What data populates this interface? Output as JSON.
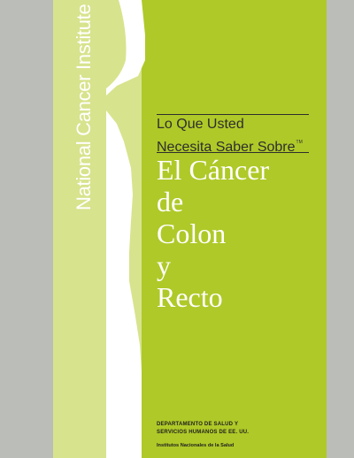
{
  "organization": "National Cancer Institute",
  "subtitle": {
    "line1": "Lo Que Usted",
    "line2": "Necesita Saber Sobre",
    "trademark": "TM"
  },
  "title_lines": [
    "El Cáncer",
    "de",
    "Colon",
    "y",
    "Recto"
  ],
  "publisher": {
    "department_line1": "DEPARTAMENTO DE SALUD Y",
    "department_line2": "SERVICIOS HUMANOS DE EE. UU.",
    "institutes": "Institutos Nacionales de la Salud"
  },
  "colors": {
    "cover_green": "#afc928",
    "figure_light_green": "#d8e38d",
    "figure_white": "#ffffff",
    "side_gray": "#bbbdb8",
    "text_dark": "#2e2e2e"
  }
}
